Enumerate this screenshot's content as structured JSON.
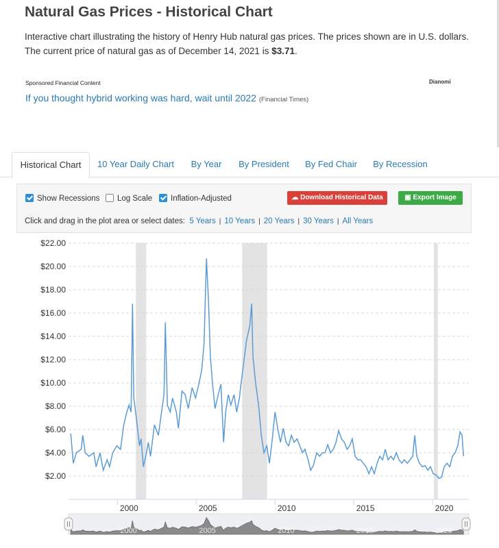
{
  "header": {
    "title": "Natural Gas Prices - Historical Chart",
    "description_before": "Interactive chart illustrating the history of Henry Hub natural gas prices. The prices shown are in U.S. dollars. The current price of natural gas as of December 14, 2021 is ",
    "price": "$3.71",
    "description_after": "."
  },
  "ad": {
    "label": "Sponsored Financial Content",
    "brand": "Dianomi",
    "headline": "If you thought hybrid working was hard, wait until 2022",
    "source": "(Financial Times)"
  },
  "tabs": [
    {
      "label": "Historical Chart",
      "active": true
    },
    {
      "label": "10 Year Daily Chart",
      "active": false
    },
    {
      "label": "By Year",
      "active": false
    },
    {
      "label": "By President",
      "active": false
    },
    {
      "label": "By Fed Chair",
      "active": false
    },
    {
      "label": "By Recession",
      "active": false
    }
  ],
  "controls": {
    "checkboxes": [
      {
        "label": "Show Recessions",
        "checked": true
      },
      {
        "label": "Log Scale",
        "checked": false
      },
      {
        "label": "Inflation-Adjusted",
        "checked": true
      }
    ],
    "download_button": "Download Historical Data",
    "export_button": "Export Image",
    "range_prompt": "Click and drag in the plot area or select dates:",
    "ranges": [
      "5 Years",
      "10 Years",
      "20 Years",
      "30 Years",
      "All Years"
    ]
  },
  "chart_data": {
    "type": "line",
    "color": "#5b9bd5",
    "x": [
      1997.04,
      1997.2,
      1997.4,
      1997.7,
      1997.8,
      1997.96,
      1998.2,
      1998.5,
      1998.65,
      1998.9,
      1999.1,
      1999.35,
      1999.5,
      1999.7,
      1999.96,
      2000.2,
      2000.4,
      2000.6,
      2000.74,
      2000.87,
      2000.96,
      2001.04,
      2001.2,
      2001.4,
      2001.5,
      2001.65,
      2001.8,
      2001.96,
      2002.1,
      2002.35,
      2002.6,
      2002.8,
      2002.96,
      2003.04,
      2003.17,
      2003.35,
      2003.5,
      2003.74,
      2003.87,
      2004.1,
      2004.3,
      2004.5,
      2004.74,
      2004.96,
      2005.17,
      2005.35,
      2005.5,
      2005.65,
      2005.78,
      2005.9,
      2006.04,
      2006.2,
      2006.4,
      2006.57,
      2006.74,
      2006.87,
      2007.04,
      2007.2,
      2007.4,
      2007.57,
      2007.74,
      2007.87,
      2008.04,
      2008.2,
      2008.4,
      2008.52,
      2008.6,
      2008.78,
      2008.96,
      2009.13,
      2009.3,
      2009.48,
      2009.65,
      2009.83,
      2010.0,
      2010.17,
      2010.35,
      2010.52,
      2010.7,
      2010.87,
      2011.04,
      2011.22,
      2011.4,
      2011.57,
      2011.74,
      2011.9,
      2012.1,
      2012.26,
      2012.43,
      2012.65,
      2012.83,
      2013.0,
      2013.17,
      2013.35,
      2013.52,
      2013.7,
      2013.87,
      2014.04,
      2014.22,
      2014.4,
      2014.57,
      2014.74,
      2014.9,
      2015.09,
      2015.26,
      2015.43,
      2015.6,
      2015.78,
      2015.96,
      2016.13,
      2016.3,
      2016.48,
      2016.65,
      2016.83,
      2017.0,
      2017.17,
      2017.35,
      2017.52,
      2017.7,
      2017.87,
      2018.04,
      2018.2,
      2018.4,
      2018.57,
      2018.74,
      2018.87,
      2019.0,
      2019.17,
      2019.35,
      2019.52,
      2019.7,
      2019.87,
      2020.04,
      2020.22,
      2020.4,
      2020.57,
      2020.74,
      2020.91,
      2021.09,
      2021.26,
      2021.43,
      2021.6,
      2021.74,
      2021.87,
      2021.96
    ],
    "values": [
      5.66,
      3.1,
      4.0,
      4.3,
      5.5,
      4.0,
      3.7,
      4.0,
      2.8,
      4.0,
      2.5,
      3.4,
      2.8,
      4.0,
      4.6,
      4.3,
      6.4,
      7.5,
      8.1,
      7.5,
      16.8,
      8.7,
      7.0,
      4.6,
      5.2,
      2.8,
      3.7,
      4.9,
      3.7,
      6.4,
      5.5,
      7.5,
      9.0,
      15.2,
      8.1,
      7.5,
      8.7,
      7.5,
      6.1,
      9.3,
      9.0,
      7.8,
      9.6,
      8.7,
      9.9,
      11.1,
      13.4,
      20.7,
      17.0,
      12.3,
      9.9,
      7.8,
      9.0,
      9.9,
      4.9,
      7.5,
      9.0,
      8.1,
      9.0,
      7.5,
      8.7,
      10.2,
      12.0,
      13.7,
      14.9,
      16.8,
      12.3,
      9.9,
      8.1,
      5.5,
      4.0,
      4.6,
      3.1,
      5.2,
      7.5,
      6.1,
      4.9,
      6.1,
      4.9,
      4.6,
      5.5,
      4.9,
      5.2,
      4.6,
      4.0,
      4.3,
      3.4,
      2.5,
      2.9,
      4.0,
      3.7,
      4.0,
      4.0,
      4.7,
      4.0,
      4.3,
      4.9,
      5.9,
      5.2,
      4.9,
      4.3,
      4.6,
      5.2,
      3.7,
      3.4,
      3.4,
      3.1,
      2.8,
      2.2,
      2.8,
      2.2,
      3.1,
      3.7,
      3.4,
      4.3,
      3.4,
      3.7,
      3.4,
      4.0,
      3.4,
      3.1,
      3.4,
      3.1,
      3.4,
      3.7,
      5.5,
      3.7,
      3.1,
      2.8,
      2.9,
      2.5,
      2.8,
      2.2,
      2.1,
      1.8,
      1.9,
      2.8,
      3.1,
      2.8,
      3.7,
      4.0,
      4.6,
      5.8,
      5.5,
      3.71
    ],
    "recessions": [
      [
        2001.17,
        2001.83
      ],
      [
        2007.92,
        2009.5
      ],
      [
        2020.08,
        2020.33
      ]
    ],
    "xlim": [
      1996.9,
      2022.3
    ],
    "xticks": [
      2000,
      2005,
      2010,
      2015,
      2020
    ],
    "ylim": [
      0,
      22
    ],
    "yticks": [
      {
        "value": 2,
        "label": "$2.00"
      },
      {
        "value": 4,
        "label": "$4.00"
      },
      {
        "value": 6,
        "label": "$6.00"
      },
      {
        "value": 8,
        "label": "$8.00"
      },
      {
        "value": 10,
        "label": "$10.00"
      },
      {
        "value": 12,
        "label": "$12.00"
      },
      {
        "value": 14,
        "label": "$14.00"
      },
      {
        "value": 16,
        "label": "$16.00"
      },
      {
        "value": 18,
        "label": "$18.00"
      },
      {
        "value": 20,
        "label": "$20.00"
      },
      {
        "value": 22,
        "label": "$22.00"
      }
    ],
    "grid": true
  }
}
